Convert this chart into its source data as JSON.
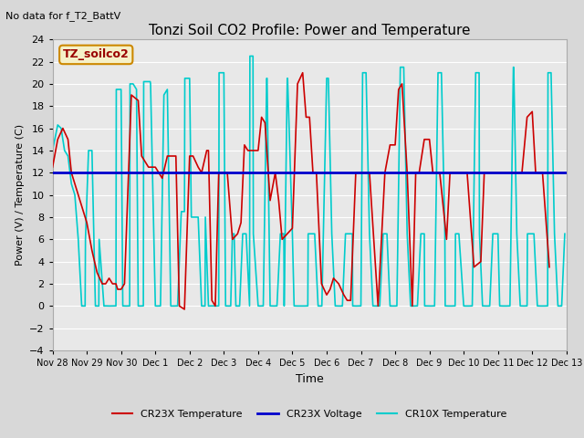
{
  "title": "Tonzi Soil CO2 Profile: Power and Temperature",
  "subtitle": "No data for f_T2_BattV",
  "xlabel": "Time",
  "ylabel": "Power (V) / Temperature (C)",
  "ylim": [
    -4,
    24
  ],
  "yticks": [
    -4,
    -2,
    0,
    2,
    4,
    6,
    8,
    10,
    12,
    14,
    16,
    18,
    20,
    22,
    24
  ],
  "xtick_labels": [
    "Nov 28",
    "Nov 29",
    "Nov 30",
    "Dec 1",
    "Dec 2",
    "Dec 3",
    "Dec 4",
    "Dec 5",
    "Dec 6",
    "Dec 7",
    "Dec 8",
    "Dec 9",
    "Dec 10",
    "Dec 11",
    "Dec 12",
    "Dec 13"
  ],
  "watermark_text": "TZ_soilco2",
  "bg_color": "#d8d8d8",
  "plot_bg_color": "#e8e8e8",
  "grid_color": "#ffffff",
  "cr23x_temp_color": "#cc0000",
  "cr23x_volt_color": "#0000cc",
  "cr10x_temp_color": "#00cccc",
  "legend_entries": [
    "CR23X Temperature",
    "CR23X Voltage",
    "CR10X Temperature"
  ],
  "voltage_value": 12.0
}
